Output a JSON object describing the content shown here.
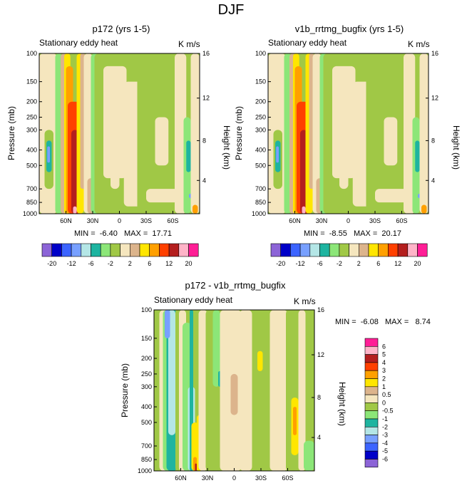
{
  "title": "DJF",
  "palette": [
    "#8c64d7",
    "#0000c8",
    "#3c64ff",
    "#78a0ff",
    "#b4e6e6",
    "#1eb4a0",
    "#8ce678",
    "#a0c846",
    "#f5e6be",
    "#dcb48c",
    "#ffe600",
    "#ffa000",
    "#ff4000",
    "#b41e1e",
    "#ffb4c8",
    "#ff1e96"
  ],
  "panels": [
    {
      "title": "p172 (yrs 1-5)",
      "left_label": "Stationary eddy heat",
      "right_label": "K m/s",
      "y_label": "Pressure (mb)",
      "y2_label": "Height (km)",
      "min_max": "MIN =  -6.40   MAX =  17.71"
    },
    {
      "title": "v1b_rrtmg_bugfix (yrs 1-5)",
      "left_label": "Stationary eddy heat",
      "right_label": "K m/s",
      "y_label": "Pressure (mb)",
      "y2_label": "Height (km)",
      "min_max": "MIN =  -8.55   MAX =  20.17"
    },
    {
      "title": "p172 - v1b_rrtmg_bugfix",
      "left_label": "Stationary eddy heat",
      "right_label": "K m/s",
      "y_label": "Pressure (mb)",
      "y2_label": "Height (km)",
      "min_max": "MIN =  -6.08   MAX =   8.74"
    }
  ],
  "colorbar_top": {
    "labels": [
      "-20",
      "-12",
      "-6",
      "-2",
      "2",
      "6",
      "12",
      "20"
    ]
  },
  "colorbar_diff": {
    "labels": [
      "6",
      "5",
      "4",
      "3",
      "2",
      "1",
      "0.5",
      "0",
      "-0.5",
      "-1",
      "-2",
      "-3",
      "-4",
      "-5",
      "-6"
    ]
  },
  "chart_data": {
    "type": "heatmap",
    "field": "Stationary eddy heat flux (K m/s), DJF",
    "x_ticks": [
      "60N",
      "30N",
      "0",
      "30S",
      "60S"
    ],
    "x_tick_values": [
      60,
      30,
      0,
      -30,
      -60
    ],
    "xlim": [
      90,
      -90
    ],
    "y_ticks": [
      "100",
      "150",
      "200",
      "250",
      "300",
      "400",
      "500",
      "700",
      "850",
      "1000"
    ],
    "y_tick_values": [
      100,
      150,
      200,
      250,
      300,
      400,
      500,
      700,
      850,
      1000
    ],
    "ylim": [
      1000,
      100
    ],
    "y2_ticks": [
      "16",
      "12",
      "8",
      "4"
    ],
    "y2_tick_values": [
      16,
      12,
      8,
      4
    ],
    "contour_levels_top": [
      -20,
      -16,
      -12,
      -8,
      -6,
      -4,
      -2,
      -1,
      1,
      2,
      4,
      6,
      8,
      12,
      16,
      20
    ],
    "contour_levels_diff": [
      -6,
      -5,
      -4,
      -3,
      -2,
      -1,
      -0.5,
      0,
      0.5,
      1,
      2,
      3,
      4,
      5,
      6
    ],
    "panels": [
      {
        "name": "p172 (yrs 1-5)",
        "min": -6.4,
        "max": 17.71
      },
      {
        "name": "v1b_rrtmg_bugfix (yrs 1-5)",
        "min": -8.55,
        "max": 20.17
      },
      {
        "name": "p172 - v1b_rrtmg_bugfix",
        "min": -6.08,
        "max": 8.74
      }
    ]
  }
}
